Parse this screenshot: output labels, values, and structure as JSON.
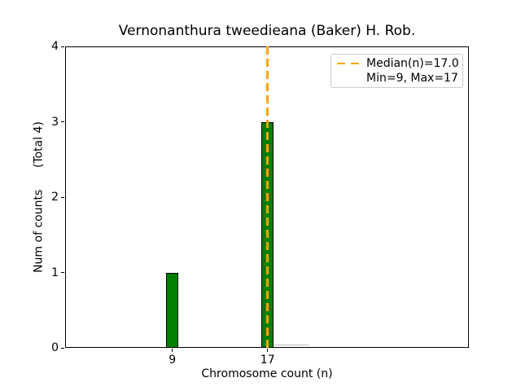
{
  "title": "Vernonanthura tweedieana (Baker) H. Rob.",
  "axes": {
    "xlabel": "Chromosome count (n)",
    "ylabel": "Num of counts      (Total 4)",
    "x_ticks": [
      "9",
      "17"
    ],
    "y_ticks": [
      "0",
      "1",
      "2",
      "3",
      "4"
    ]
  },
  "legend": {
    "items": [
      {
        "handle": "orange-dashed-line",
        "label": "Median(n)=17.0"
      },
      {
        "handle": "none",
        "label": "Min=9, Max=17"
      }
    ]
  },
  "colors": {
    "bar_fill": "#008000",
    "bar_edge": "#000000",
    "median_line": "#ffa500",
    "legend_border": "#cccccc",
    "axis": "#000000",
    "background": "#ffffff"
  },
  "chart_data": {
    "type": "bar",
    "categories": [
      9,
      17
    ],
    "values": [
      1,
      3
    ],
    "bar_width": 1,
    "title": "Vernonanthura tweedieana (Baker) H. Rob.",
    "xlabel": "Chromosome count (n)",
    "ylabel": "Num of counts (Total 4)",
    "xlim": [
      0,
      33.9
    ],
    "ylim": [
      0,
      4
    ],
    "y_tick_values": [
      0,
      1,
      2,
      3,
      4
    ],
    "median": 17.0,
    "min": 9,
    "max": 17,
    "total_counts": 4,
    "median_line_style": "dashed",
    "legend_position": "upper right",
    "grid": false
  }
}
